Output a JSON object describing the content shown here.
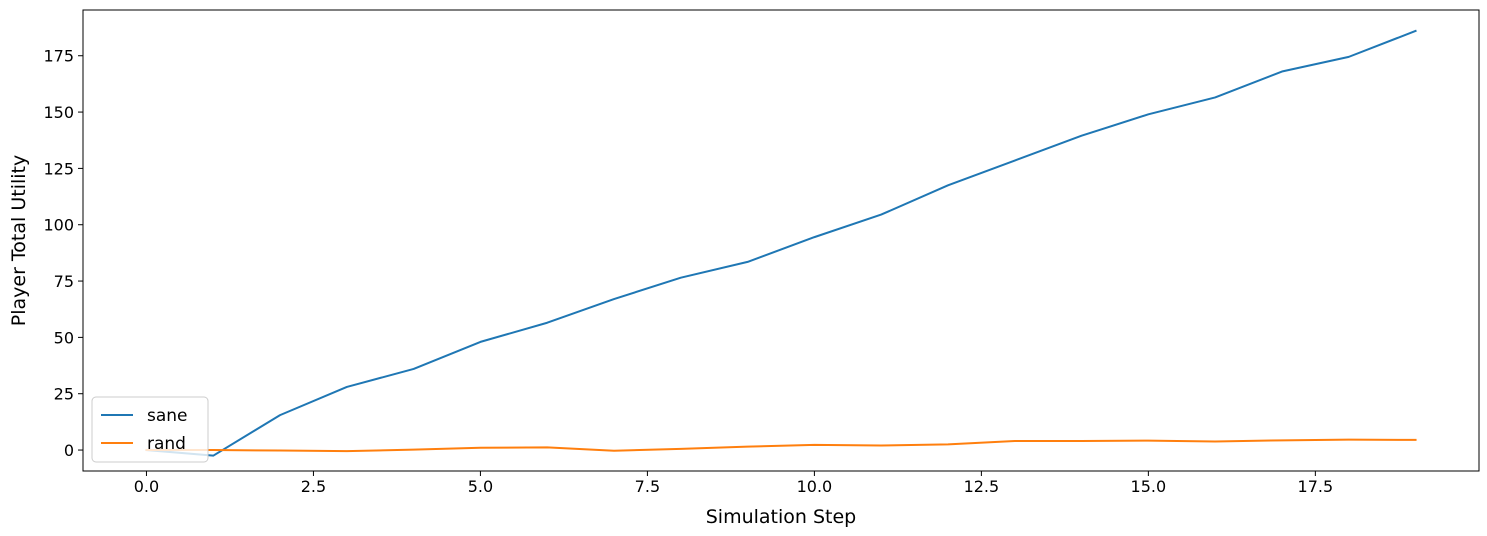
{
  "chart_data": {
    "type": "line",
    "title": "",
    "xlabel": "Simulation Step",
    "ylabel": "Player Total Utility",
    "xlim": [
      -0.95,
      19.95
    ],
    "ylim": [
      -9.3,
      195.3
    ],
    "xticks": [
      0.0,
      2.5,
      5.0,
      7.5,
      10.0,
      12.5,
      15.0,
      17.5
    ],
    "xtick_labels": [
      "0.0",
      "2.5",
      "5.0",
      "7.5",
      "10.0",
      "12.5",
      "15.0",
      "17.5"
    ],
    "yticks": [
      0,
      25,
      50,
      75,
      100,
      125,
      150,
      175
    ],
    "ytick_labels": [
      "0",
      "25",
      "50",
      "75",
      "100",
      "125",
      "150",
      "175"
    ],
    "grid": false,
    "legend_position": "lower-left",
    "x": [
      0,
      1,
      2,
      3,
      4,
      5,
      6,
      7,
      8,
      9,
      10,
      11,
      12,
      13,
      14,
      15,
      16,
      17,
      18,
      19
    ],
    "series": [
      {
        "name": "sane",
        "color": "#1f77b4",
        "values": [
          0,
          -2.5,
          15.5,
          28,
          36,
          48,
          56.5,
          67,
          76.5,
          83.5,
          94.5,
          104.5,
          117.5,
          128.5,
          139.5,
          149,
          156.5,
          168,
          174.5,
          186
        ]
      },
      {
        "name": "rand",
        "color": "#ff7f0e",
        "values": [
          0,
          0,
          -0.2,
          -0.5,
          0.2,
          1,
          1.2,
          -0.3,
          0.5,
          1.5,
          2.3,
          2,
          2.5,
          4,
          4,
          4.2,
          3.8,
          4.3,
          4.6,
          4.5
        ]
      }
    ]
  }
}
